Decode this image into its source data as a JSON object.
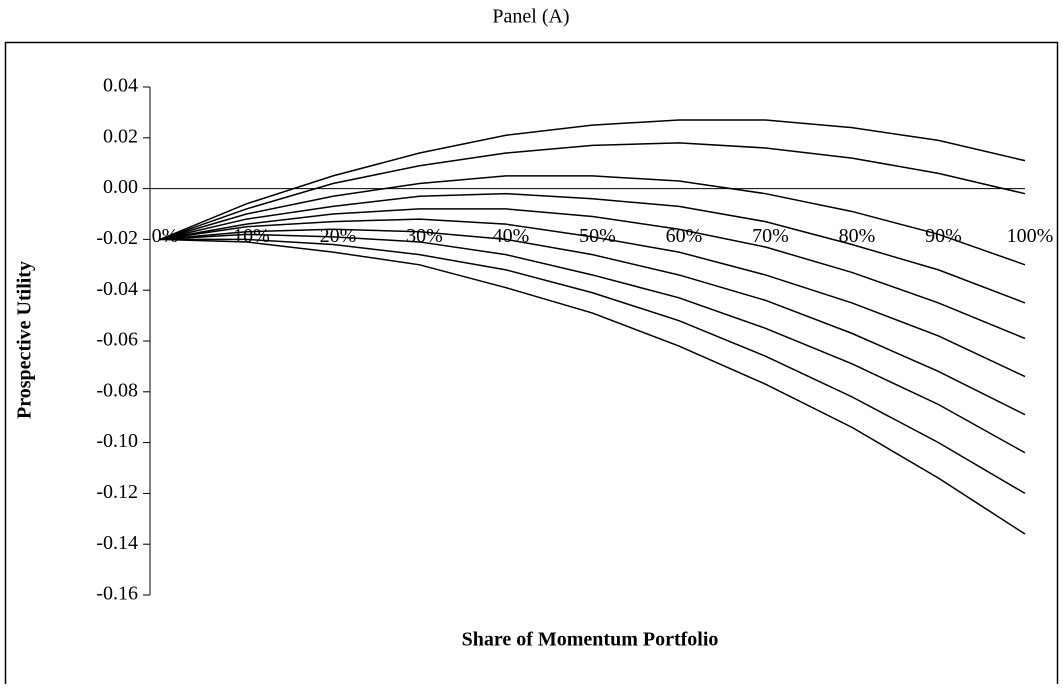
{
  "chart_data": {
    "type": "line",
    "title": "Panel (A)",
    "x_label": "Share of Momentum Portfolio",
    "y_label": "Prospective Utility",
    "categories": [
      "0%",
      "10%",
      "20%",
      "30%",
      "40%",
      "50%",
      "60%",
      "70%",
      "80%",
      "90%",
      "100%"
    ],
    "series": [
      {
        "color": "#000000",
        "values": [
          -0.02,
          -0.006,
          0.005,
          0.014,
          0.021,
          0.025,
          0.027,
          0.027,
          0.024,
          0.019,
          0.011
        ]
      },
      {
        "color": "#000000",
        "values": [
          -0.02,
          -0.008,
          0.002,
          0.009,
          0.014,
          0.017,
          0.018,
          0.016,
          0.012,
          0.006,
          -0.002
        ]
      },
      {
        "color": "#000000",
        "values": [
          -0.02,
          -0.01,
          -0.003,
          0.002,
          0.005,
          0.005,
          0.003,
          -0.002,
          -0.009,
          -0.018,
          -0.03
        ]
      },
      {
        "color": "#000000",
        "values": [
          -0.02,
          -0.012,
          -0.007,
          -0.003,
          -0.002,
          -0.004,
          -0.007,
          -0.013,
          -0.022,
          -0.032,
          -0.045
        ]
      },
      {
        "color": "#000000",
        "values": [
          -0.02,
          -0.014,
          -0.01,
          -0.008,
          -0.008,
          -0.011,
          -0.016,
          -0.023,
          -0.033,
          -0.045,
          -0.059
        ]
      },
      {
        "color": "#000000",
        "values": [
          -0.02,
          -0.015,
          -0.013,
          -0.012,
          -0.014,
          -0.019,
          -0.025,
          -0.034,
          -0.045,
          -0.058,
          -0.074
        ]
      },
      {
        "color": "#000000",
        "values": [
          -0.02,
          -0.017,
          -0.016,
          -0.017,
          -0.02,
          -0.026,
          -0.034,
          -0.044,
          -0.057,
          -0.072,
          -0.089
        ]
      },
      {
        "color": "#000000",
        "values": [
          -0.02,
          -0.018,
          -0.019,
          -0.021,
          -0.026,
          -0.034,
          -0.043,
          -0.055,
          -0.069,
          -0.085,
          -0.104
        ]
      },
      {
        "color": "#000000",
        "values": [
          -0.02,
          -0.02,
          -0.022,
          -0.026,
          -0.032,
          -0.041,
          -0.052,
          -0.066,
          -0.082,
          -0.1,
          -0.12
        ]
      },
      {
        "color": "#000000",
        "values": [
          -0.02,
          -0.021,
          -0.025,
          -0.03,
          -0.039,
          -0.049,
          -0.062,
          -0.077,
          -0.094,
          -0.114,
          -0.136
        ]
      }
    ],
    "ylim": [
      -0.16,
      0.04
    ],
    "yticks": [
      {
        "value": -0.16,
        "label": "-0.16"
      },
      {
        "value": -0.14,
        "label": "-0.14"
      },
      {
        "value": -0.12,
        "label": "-0.12"
      },
      {
        "value": -0.1,
        "label": "-0.10"
      },
      {
        "value": -0.08,
        "label": "-0.08"
      },
      {
        "value": -0.06,
        "label": "-0.06"
      },
      {
        "value": -0.04,
        "label": "-0.04"
      },
      {
        "value": -0.02,
        "label": "-0.02"
      },
      {
        "value": 0,
        "label": "0.00"
      },
      {
        "value": 0.02,
        "label": "0.02"
      },
      {
        "value": 0.04,
        "label": "0.04"
      }
    ],
    "grid": false
  }
}
